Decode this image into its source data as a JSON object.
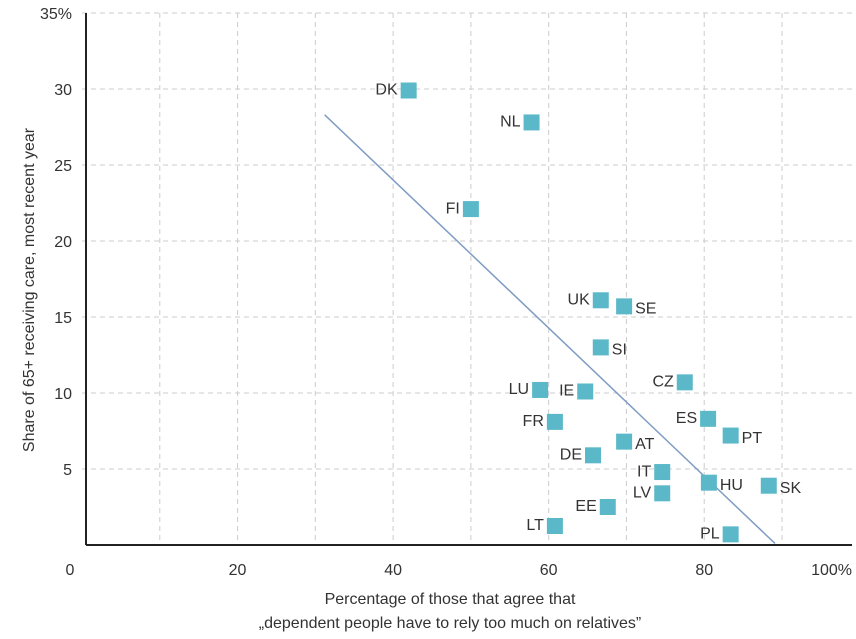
{
  "chart_data": {
    "type": "scatter",
    "ylabel": "Share of 65+ receiving care, most recent year",
    "xlabel": [
      "Percentage of those that agree that",
      "„dependent people have to rely too much on relatives”"
    ],
    "xlim": [
      0,
      99
    ],
    "ylim": [
      0,
      35
    ],
    "xticks": [
      0,
      20,
      40,
      60,
      80,
      {
        "value": 100,
        "label": "100%"
      }
    ],
    "xgrid": [
      10,
      20,
      30,
      40,
      50,
      60,
      70,
      80,
      90
    ],
    "yticks": [
      5,
      10,
      15,
      20,
      25,
      30,
      {
        "value": 35,
        "label": "35%"
      }
    ],
    "grid": true,
    "series": [
      {
        "color": "#5bb8c8",
        "point_labels": [
          "DK",
          "NL",
          "FI",
          "UK",
          "SE",
          "SI",
          "LU",
          "IE",
          "CZ",
          "FR",
          "ES",
          "PT",
          "AT",
          "DE",
          "IT",
          "HU",
          "SK",
          "LV",
          "EE",
          "LT",
          "PL"
        ],
        "x": [
          42.0,
          57.8,
          50.0,
          66.7,
          69.7,
          66.7,
          58.9,
          64.7,
          77.5,
          60.8,
          80.5,
          83.4,
          69.7,
          65.7,
          74.6,
          80.6,
          88.3,
          74.6,
          67.6,
          60.8,
          83.4
        ],
        "values": [
          29.9,
          27.8,
          22.1,
          16.1,
          15.7,
          13.0,
          10.2,
          10.1,
          10.7,
          8.1,
          8.3,
          7.2,
          6.8,
          5.9,
          4.8,
          4.1,
          3.9,
          3.4,
          2.5,
          1.25,
          0.7
        ]
      }
    ],
    "trendline": {
      "color": "#7f9cc4",
      "x": [
        31.2,
        89.1
      ],
      "values": [
        28.3,
        0.1
      ]
    }
  }
}
